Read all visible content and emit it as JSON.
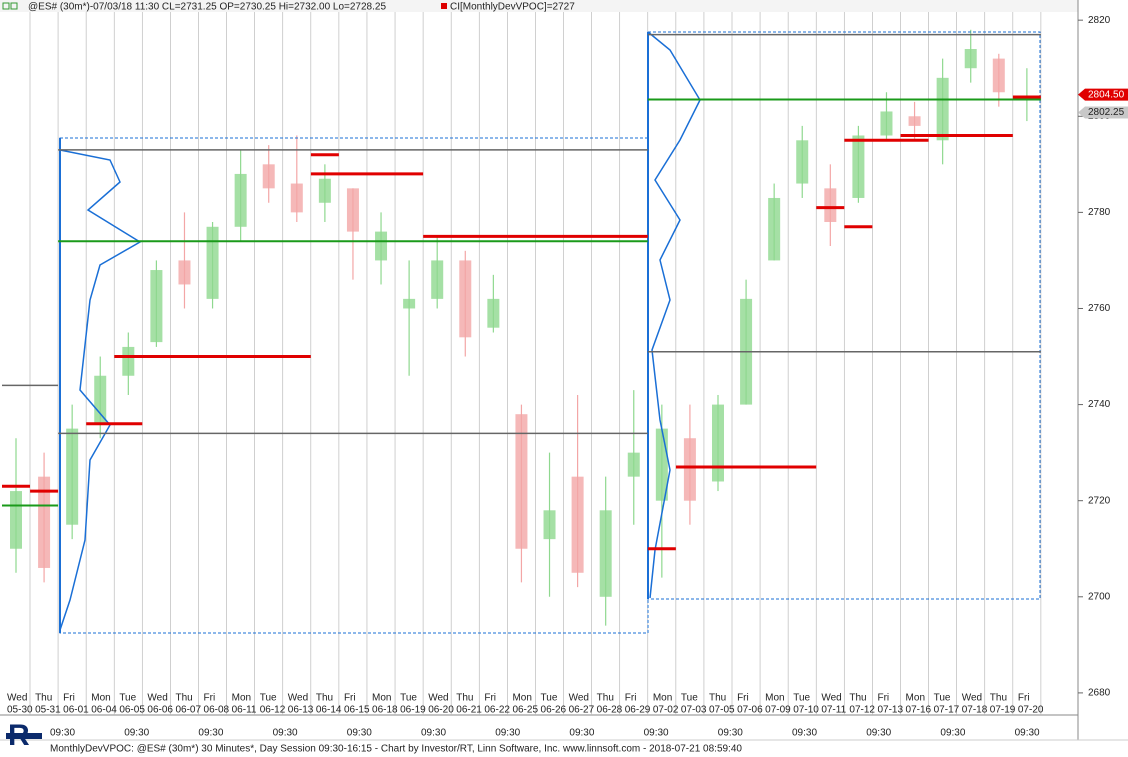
{
  "header": {
    "symbol": "@ES# (30m*)-07/03/18 11:30 CL=2731.25 OP=2730.25 Hi=2732.00 Lo=2728.25",
    "indicator": "CI[MonthlyDevVPOC]=2727"
  },
  "chart_data": {
    "type": "candlestick",
    "ylim": [
      2675.4,
      2821.7
    ],
    "yticks": [
      2680,
      2700,
      2720,
      2740,
      2760,
      2780,
      2800,
      2820
    ],
    "days": [
      {
        "weekday": "Wed",
        "date": "05-30"
      },
      {
        "weekday": "Thu",
        "date": "05-31"
      },
      {
        "weekday": "Fri",
        "date": "06-01"
      },
      {
        "weekday": "Mon",
        "date": "06-04"
      },
      {
        "weekday": "Tue",
        "date": "06-05"
      },
      {
        "weekday": "Wed",
        "date": "06-06"
      },
      {
        "weekday": "Thu",
        "date": "06-07"
      },
      {
        "weekday": "Fri",
        "date": "06-08"
      },
      {
        "weekday": "Mon",
        "date": "06-11"
      },
      {
        "weekday": "Tue",
        "date": "06-12"
      },
      {
        "weekday": "Wed",
        "date": "06-13"
      },
      {
        "weekday": "Thu",
        "date": "06-14"
      },
      {
        "weekday": "Fri",
        "date": "06-15"
      },
      {
        "weekday": "Mon",
        "date": "06-18"
      },
      {
        "weekday": "Tue",
        "date": "06-19"
      },
      {
        "weekday": "Wed",
        "date": "06-20"
      },
      {
        "weekday": "Thu",
        "date": "06-21"
      },
      {
        "weekday": "Fri",
        "date": "06-22"
      },
      {
        "weekday": "Mon",
        "date": "06-25"
      },
      {
        "weekday": "Tue",
        "date": "06-26"
      },
      {
        "weekday": "Wed",
        "date": "06-27"
      },
      {
        "weekday": "Thu",
        "date": "06-28"
      },
      {
        "weekday": "Fri",
        "date": "06-29"
      },
      {
        "weekday": "Mon",
        "date": "07-02"
      },
      {
        "weekday": "Tue",
        "date": "07-03"
      },
      {
        "weekday": "Thu",
        "date": "07-05"
      },
      {
        "weekday": "Fri",
        "date": "07-06"
      },
      {
        "weekday": "Mon",
        "date": "07-09"
      },
      {
        "weekday": "Tue",
        "date": "07-10"
      },
      {
        "weekday": "Wed",
        "date": "07-11"
      },
      {
        "weekday": "Thu",
        "date": "07-12"
      },
      {
        "weekday": "Fri",
        "date": "07-13"
      },
      {
        "weekday": "Mon",
        "date": "07-16"
      },
      {
        "weekday": "Tue",
        "date": "07-17"
      },
      {
        "weekday": "Wed",
        "date": "07-18"
      },
      {
        "weekday": "Thu",
        "date": "07-19"
      },
      {
        "weekday": "Fri",
        "date": "07-20"
      }
    ],
    "open": [
      2710,
      2725,
      2715,
      2736,
      2746,
      2753,
      2770,
      2762,
      2777,
      2790,
      2786,
      2782,
      2785,
      2770,
      2760,
      2762,
      2770,
      2756,
      2738,
      2712,
      2725,
      2700,
      2725,
      2720,
      2733,
      2724,
      2740,
      2770,
      2786,
      2785,
      2783,
      2796,
      2800,
      2795,
      2810,
      2812,
      2804
    ],
    "high": [
      2733,
      2730,
      2740,
      2750,
      2755,
      2770,
      2780,
      2778,
      2793,
      2794,
      2796,
      2790,
      2785,
      2780,
      2770,
      2775,
      2772,
      2767,
      2740,
      2730,
      2742,
      2725,
      2743,
      2740,
      2740,
      2742,
      2766,
      2786,
      2798,
      2790,
      2798,
      2805,
      2803,
      2812,
      2818,
      2813,
      2810
    ],
    "low": [
      2705,
      2703,
      2712,
      2733,
      2742,
      2752,
      2760,
      2760,
      2774,
      2782,
      2778,
      2778,
      2766,
      2765,
      2746,
      2760,
      2750,
      2755,
      2703,
      2700,
      2702,
      2694,
      2715,
      2704,
      2715,
      2722,
      2740,
      2770,
      2783,
      2773,
      2782,
      2795,
      2795,
      2790,
      2807,
      2802,
      2799
    ],
    "close": [
      2722,
      2706,
      2735,
      2746,
      2752,
      2768,
      2765,
      2777,
      2788,
      2785,
      2780,
      2787,
      2776,
      2776,
      2762,
      2770,
      2754,
      2762,
      2710,
      2718,
      2705,
      2718,
      2730,
      2735,
      2720,
      2740,
      2762,
      2783,
      2795,
      2778,
      2796,
      2801,
      2798,
      2808,
      2814,
      2805,
      2804
    ],
    "levels": [
      {
        "kind": "dev",
        "from": "05-30",
        "to": "05-30",
        "value": 2723
      },
      {
        "kind": "dev",
        "from": "05-31",
        "to": "05-31",
        "value": 2722
      },
      {
        "kind": "dev",
        "from": "06-04",
        "to": "06-05",
        "value": 2736
      },
      {
        "kind": "dev",
        "from": "06-05",
        "to": "06-13",
        "value": 2750
      },
      {
        "kind": "dev",
        "from": "06-14",
        "to": "06-14",
        "value": 2792
      },
      {
        "kind": "dev",
        "from": "06-14",
        "to": "06-19",
        "value": 2788
      },
      {
        "kind": "dev",
        "from": "06-20",
        "to": "06-29",
        "value": 2775
      },
      {
        "kind": "dev",
        "from": "07-02",
        "to": "07-02",
        "value": 2710
      },
      {
        "kind": "dev",
        "from": "07-03",
        "to": "07-10",
        "value": 2727
      },
      {
        "kind": "dev",
        "from": "07-11",
        "to": "07-11",
        "value": 2781
      },
      {
        "kind": "dev",
        "from": "07-12",
        "to": "07-12",
        "value": 2777
      },
      {
        "kind": "dev",
        "from": "07-12",
        "to": "07-16",
        "value": 2795
      },
      {
        "kind": "dev",
        "from": "07-16",
        "to": "07-19",
        "value": 2796
      },
      {
        "kind": "dev",
        "from": "07-20",
        "to": "07-20",
        "value": 2804
      },
      {
        "kind": "vpoc",
        "from": "05-30",
        "to": "05-31",
        "value": 2719
      },
      {
        "kind": "vpoc",
        "from": "06-01",
        "to": "06-29",
        "value": 2774
      },
      {
        "kind": "vpoc",
        "from": "07-02",
        "to": "07-20",
        "value": 2803.5
      },
      {
        "kind": "range",
        "from": "05-30",
        "to": "05-31",
        "value": 2744
      },
      {
        "kind": "range",
        "from": "06-01",
        "to": "06-29",
        "value": 2793
      },
      {
        "kind": "range",
        "from": "06-01",
        "to": "06-29",
        "value": 2734
      },
      {
        "kind": "range",
        "from": "07-02",
        "to": "07-20",
        "value": 2817
      },
      {
        "kind": "range",
        "from": "07-02",
        "to": "07-20",
        "value": 2751
      }
    ],
    "price_tags": [
      {
        "value": 2804.5,
        "label": "2804.50",
        "color": "#e00000"
      },
      {
        "value": 2802.25,
        "label": "2802.25",
        "color": "#c8c8c8"
      }
    ],
    "time_labels": [
      "09:30",
      "09:30",
      "09:30",
      "09:30",
      "09:30",
      "09:30",
      "09:30",
      "09:30",
      "09:30",
      "09:30",
      "09:30",
      "09:30",
      "09:30",
      "09:30"
    ]
  },
  "footer": "MonthlyDevVPOC: @ES# (30m*) 30 Minutes*, Day Session 09:30-16:15 - Chart by Investor/RT, Linn Software, Inc. www.linnsoft.com - 2018-07-21 08:59:40"
}
